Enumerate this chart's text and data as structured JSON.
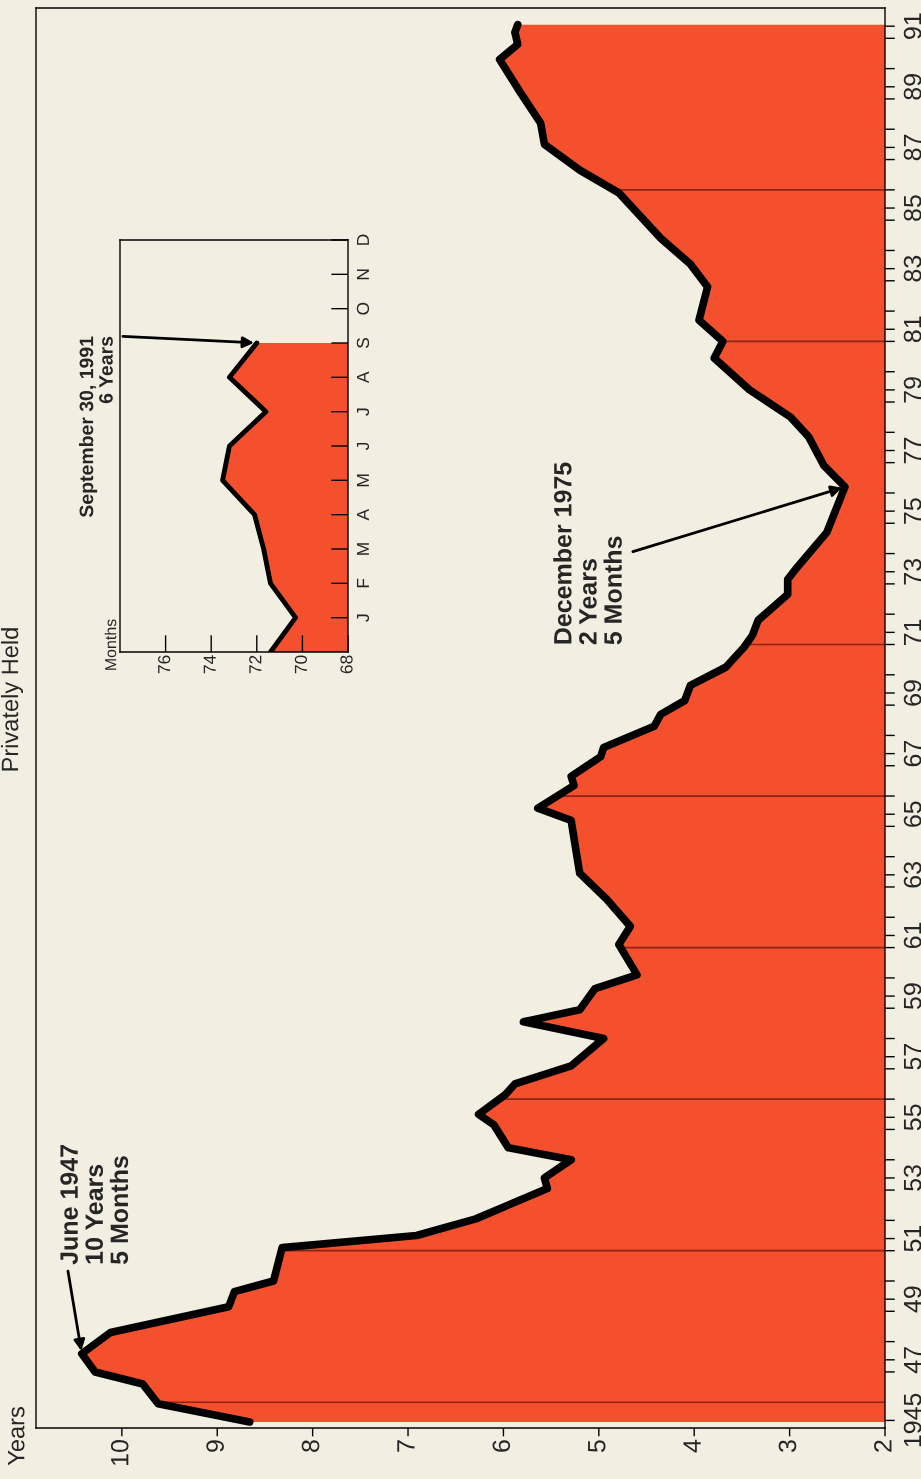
{
  "chart_data": [
    {
      "type": "area",
      "orientation": "horizontal",
      "title": "Privately Held",
      "ylabel": "Years",
      "color": "#f4502e",
      "x": [
        1944.95,
        1945.55,
        1946.2,
        1946.6,
        1947.2,
        1947.9,
        1948.75,
        1949.25,
        1949.6,
        1950.7,
        1951.1,
        1951.65,
        1952.65,
        1953.0,
        1953.6,
        1954.0,
        1954.75,
        1955.1,
        1955.75,
        1956.1,
        1956.7,
        1957.6,
        1958.15,
        1958.55,
        1959.25,
        1959.7,
        1960.7,
        1961.3,
        1962.2,
        1963.05,
        1964.2,
        1964.8,
        1965.2,
        1965.95,
        1966.25,
        1966.9,
        1967.2,
        1967.9,
        1968.3,
        1968.75,
        1969.25,
        1969.85,
        1970.5,
        1970.9,
        1971.4,
        1972.25,
        1972.75,
        1973.15,
        1974.3,
        1975.25,
        1975.8,
        1976.5,
        1977.45,
        1978.1,
        1979.0,
        1980.05,
        1980.6,
        1981.3,
        1982.4,
        1983.15,
        1984.0,
        1985.5,
        1986.25,
        1987.1,
        1987.8,
        1988.8,
        1989.9,
        1990.4,
        1990.8,
        1991.05
      ],
      "values": [
        8.66,
        9.62,
        9.78,
        10.28,
        10.42,
        10.12,
        8.88,
        8.82,
        8.41,
        8.32,
        6.91,
        6.29,
        5.54,
        5.57,
        5.29,
        5.95,
        6.1,
        6.26,
        5.98,
        5.88,
        5.29,
        4.95,
        5.79,
        5.2,
        5.04,
        4.6,
        4.79,
        4.67,
        4.92,
        5.2,
        5.26,
        5.29,
        5.64,
        5.26,
        5.29,
        4.98,
        4.95,
        4.42,
        4.35,
        4.1,
        4.04,
        3.67,
        3.48,
        3.39,
        3.33,
        3.02,
        3.02,
        2.92,
        2.61,
        2.49,
        2.42,
        2.64,
        2.8,
        2.99,
        3.42,
        3.79,
        3.7,
        3.95,
        3.86,
        4.04,
        4.35,
        4.79,
        5.2,
        5.57,
        5.61,
        5.82,
        6.04,
        5.85,
        5.88,
        5.85
      ],
      "xlim": [
        10.9,
        2
      ],
      "xticks": [
        10,
        9,
        8,
        7,
        6,
        5,
        4,
        3,
        2
      ],
      "ylim": [
        1944.75,
        1991.6
      ],
      "yticks": [
        1945,
        {
          "value": 1947,
          "label": "47"
        },
        {
          "value": 1949,
          "label": "49"
        },
        {
          "value": 1951,
          "label": "51"
        },
        {
          "value": 1953,
          "label": "53"
        },
        {
          "value": 1955,
          "label": "55"
        },
        {
          "value": 1957,
          "label": "57"
        },
        {
          "value": 1959,
          "label": "59"
        },
        {
          "value": 1961,
          "label": "61"
        },
        {
          "value": 1963,
          "label": "63"
        },
        {
          "value": 1965,
          "label": "65"
        },
        {
          "value": 1967,
          "label": "67"
        },
        {
          "value": 1969,
          "label": "69"
        },
        {
          "value": 1971,
          "label": "71"
        },
        {
          "value": 1973,
          "label": "73"
        },
        {
          "value": 1975,
          "label": "75"
        },
        {
          "value": 1977,
          "label": "77"
        },
        {
          "value": 1979,
          "label": "79"
        },
        {
          "value": 1981,
          "label": "81"
        },
        {
          "value": 1983,
          "label": "83"
        },
        {
          "value": 1985,
          "label": "85"
        },
        {
          "value": 1987,
          "label": "87"
        },
        {
          "value": 1989,
          "label": "89"
        },
        {
          "value": 1991,
          "label": "91"
        },
        {
          "value": 1946.6,
          "label": null
        },
        {
          "value": 1947.6,
          "label": null
        },
        {
          "value": 1948.6,
          "label": null
        },
        {
          "value": 1949.6,
          "label": null
        },
        {
          "value": 1950.6,
          "label": null
        },
        {
          "value": 1951.6,
          "label": null
        },
        {
          "value": 1952.6,
          "label": null
        },
        {
          "value": 1953.6,
          "label": null
        },
        {
          "value": 1954.6,
          "label": null
        },
        {
          "value": 1955.6,
          "label": null
        },
        {
          "value": 1956.6,
          "label": null
        },
        {
          "value": 1957.6,
          "label": null
        },
        {
          "value": 1958.6,
          "label": null
        },
        {
          "value": 1959.6,
          "label": null
        },
        {
          "value": 1960.6,
          "label": null
        },
        {
          "value": 1961.6,
          "label": null
        },
        {
          "value": 1962.6,
          "label": null
        },
        {
          "value": 1963.6,
          "label": null
        },
        {
          "value": 1964.6,
          "label": null
        },
        {
          "value": 1965.6,
          "label": null
        },
        {
          "value": 1966.6,
          "label": null
        },
        {
          "value": 1967.6,
          "label": null
        },
        {
          "value": 1968.6,
          "label": null
        },
        {
          "value": 1969.6,
          "label": null
        },
        {
          "value": 1970.6,
          "label": null
        },
        {
          "value": 1971.6,
          "label": null
        },
        {
          "value": 1972.6,
          "label": null
        },
        {
          "value": 1973.6,
          "label": null
        },
        {
          "value": 1974.6,
          "label": null
        },
        {
          "value": 1975.6,
          "label": null
        },
        {
          "value": 1976.6,
          "label": null
        },
        {
          "value": 1977.6,
          "label": null
        },
        {
          "value": 1978.6,
          "label": null
        },
        {
          "value": 1979.6,
          "label": null
        },
        {
          "value": 1980.6,
          "label": null
        },
        {
          "value": 1981.6,
          "label": null
        },
        {
          "value": 1982.6,
          "label": null
        },
        {
          "value": 1983.6,
          "label": null
        },
        {
          "value": 1984.6,
          "label": null
        },
        {
          "value": 1985.6,
          "label": null
        },
        {
          "value": 1986.6,
          "label": null
        },
        {
          "value": 1987.6,
          "label": null
        },
        {
          "value": 1988.6,
          "label": null
        },
        {
          "value": 1989.6,
          "label": null
        },
        {
          "value": 1990.6,
          "label": null
        }
      ],
      "ref_lines": [
        {
          "axis": "y",
          "value": 1945.6,
          "color": "#8c2416"
        },
        {
          "axis": "y",
          "value": 1950.6,
          "color": "#8c2416"
        },
        {
          "axis": "y",
          "value": 1955.6,
          "color": "#8c2416"
        },
        {
          "axis": "y",
          "value": 1960.6,
          "color": "#8c2416"
        },
        {
          "axis": "y",
          "value": 1965.6,
          "color": "#8c2416"
        },
        {
          "axis": "y",
          "value": 1970.6,
          "color": "#8c2416"
        },
        {
          "axis": "y",
          "value": 1980.6,
          "color": "#8c2416"
        },
        {
          "axis": "y",
          "value": 1985.6,
          "color": "#8c2416"
        }
      ],
      "annotations": [
        {
          "text": "June 1947\n10 Years\n5 Months",
          "x": 10.42,
          "y": 1947.2
        },
        {
          "text": "December 1975\n2 Years\n5 Months",
          "x": 2.42,
          "y": 1975.8
        }
      ]
    },
    {
      "type": "area",
      "orientation": "horizontal",
      "ylabel": "Months",
      "color": "#f4502e",
      "categories": [
        "D",
        "N",
        "O",
        "S",
        "A",
        "J",
        "J",
        "M",
        "A",
        "M",
        "F",
        "J",
        null
      ],
      "values": [
        null,
        null,
        null,
        72.0,
        73.2,
        71.6,
        73.2,
        73.5,
        72.1,
        71.7,
        71.4,
        70.3,
        71.4
      ],
      "xlim": [
        78,
        68
      ],
      "xticks": [
        76,
        74,
        72,
        70,
        68
      ],
      "annotations": [
        {
          "text": "September 30, 1991\n6 Years",
          "x": 72.0,
          "y": "S"
        }
      ]
    }
  ]
}
